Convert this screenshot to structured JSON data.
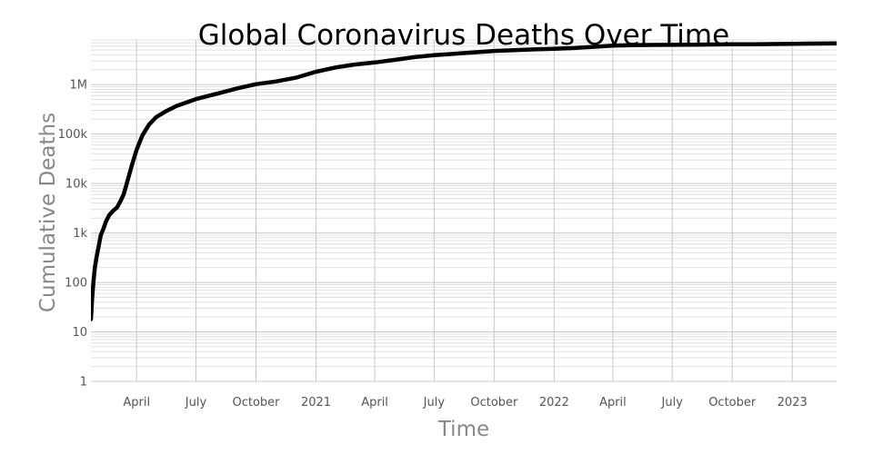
{
  "chart_data": {
    "type": "line",
    "title": "Global Coronavirus Deaths Over Time",
    "xlabel": "Time",
    "ylabel": "Cumulative Deaths",
    "y_scale": "log",
    "ylim": [
      1,
      8000000
    ],
    "xlim": [
      "2020-01-22",
      "2023-03-10"
    ],
    "grid": true,
    "legend": "none",
    "line_color": "#000000",
    "x_ticks": [
      {
        "label": "April",
        "date": "2020-04-01"
      },
      {
        "label": "July",
        "date": "2020-07-01"
      },
      {
        "label": "October",
        "date": "2020-10-01"
      },
      {
        "label": "2021",
        "date": "2021-01-01"
      },
      {
        "label": "April",
        "date": "2021-04-01"
      },
      {
        "label": "July",
        "date": "2021-07-01"
      },
      {
        "label": "October",
        "date": "2021-10-01"
      },
      {
        "label": "2022",
        "date": "2022-01-01"
      },
      {
        "label": "April",
        "date": "2022-04-01"
      },
      {
        "label": "July",
        "date": "2022-07-01"
      },
      {
        "label": "October",
        "date": "2022-10-01"
      },
      {
        "label": "2023",
        "date": "2023-01-01"
      }
    ],
    "y_ticks": [
      {
        "label": "1",
        "value": 1
      },
      {
        "label": "10",
        "value": 10
      },
      {
        "label": "100",
        "value": 100
      },
      {
        "label": "1k",
        "value": 1000
      },
      {
        "label": "10k",
        "value": 10000
      },
      {
        "label": "100k",
        "value": 100000
      },
      {
        "label": "1M",
        "value": 1000000
      }
    ],
    "series": [
      {
        "x": [
          "2020-01-22",
          "2020-01-24",
          "2020-01-26",
          "2020-01-28",
          "2020-01-31",
          "2020-02-03",
          "2020-02-06",
          "2020-02-10",
          "2020-02-14",
          "2020-02-19",
          "2020-02-25",
          "2020-03-02",
          "2020-03-08",
          "2020-03-12",
          "2020-03-16",
          "2020-03-20",
          "2020-03-25",
          "2020-04-01",
          "2020-04-10",
          "2020-04-20",
          "2020-05-01",
          "2020-05-15",
          "2020-06-01",
          "2020-06-15",
          "2020-07-01",
          "2020-08-01",
          "2020-09-01",
          "2020-10-01",
          "2020-11-01",
          "2020-12-01",
          "2021-01-01",
          "2021-02-01",
          "2021-03-01",
          "2021-04-01",
          "2021-05-01",
          "2021-06-01",
          "2021-07-01",
          "2021-08-01",
          "2021-09-01",
          "2021-10-01",
          "2021-11-01",
          "2021-12-01",
          "2022-01-01",
          "2022-02-01",
          "2022-03-01",
          "2022-04-01",
          "2022-05-01",
          "2022-06-01",
          "2022-07-01",
          "2022-08-01",
          "2022-09-01",
          "2022-10-01",
          "2022-11-01",
          "2022-12-01",
          "2023-01-01",
          "2023-02-01",
          "2023-03-10"
        ],
        "values": [
          18,
          50,
          110,
          200,
          350,
          550,
          900,
          1200,
          1700,
          2300,
          2800,
          3300,
          4600,
          6000,
          9000,
          14000,
          24000,
          48000,
          95000,
          155000,
          220000,
          285000,
          370000,
          430000,
          510000,
          650000,
          830000,
          1020000,
          1160000,
          1380000,
          1820000,
          2230000,
          2540000,
          2800000,
          3150000,
          3600000,
          3940000,
          4200000,
          4500000,
          4800000,
          4990000,
          5150000,
          5300000,
          5500000,
          5800000,
          6150000,
          6300000,
          6350000,
          6380000,
          6420000,
          6470000,
          6520000,
          6570000,
          6610000,
          6670000,
          6750000,
          6850000
        ]
      }
    ]
  }
}
